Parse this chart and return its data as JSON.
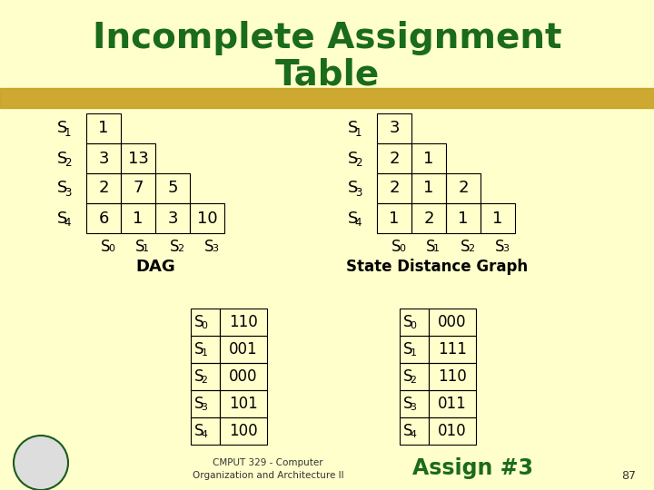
{
  "title_line1": "Incomplete Assignment",
  "title_line2": "Table",
  "title_color": "#1a6b1a",
  "bg_color": "#ffffcc",
  "text_color": "#000000",
  "highlight_color": "#c8a020",
  "dag_label": "DAG",
  "sdg_label": "State Distance Graph",
  "dag_rows": [
    {
      "state": "S",
      "sub": "1",
      "vals": [
        "1"
      ]
    },
    {
      "state": "S",
      "sub": "2",
      "vals": [
        "3",
        "13"
      ]
    },
    {
      "state": "S",
      "sub": "3",
      "vals": [
        "2",
        "7",
        "5"
      ]
    },
    {
      "state": "S",
      "sub": "4",
      "vals": [
        "6",
        "1",
        "3",
        "10"
      ]
    }
  ],
  "dag_col_labels": [
    [
      "S",
      "0"
    ],
    [
      "S",
      "1"
    ],
    [
      "S",
      "2"
    ],
    [
      "S",
      "3"
    ]
  ],
  "sdg_rows": [
    {
      "state": "S",
      "sub": "1",
      "vals": [
        "3"
      ]
    },
    {
      "state": "S",
      "sub": "2",
      "vals": [
        "2",
        "1"
      ]
    },
    {
      "state": "S",
      "sub": "3",
      "vals": [
        "2",
        "1",
        "2"
      ]
    },
    {
      "state": "S",
      "sub": "4",
      "vals": [
        "1",
        "2",
        "1",
        "1"
      ]
    }
  ],
  "sdg_col_labels": [
    [
      "S",
      "0"
    ],
    [
      "S",
      "1"
    ],
    [
      "S",
      "2"
    ],
    [
      "S",
      "3"
    ]
  ],
  "assign_left": [
    {
      "state": "S",
      "sub": "0",
      "val": "110"
    },
    {
      "state": "S",
      "sub": "1",
      "val": "001"
    },
    {
      "state": "S",
      "sub": "2",
      "val": "000"
    },
    {
      "state": "S",
      "sub": "3",
      "val": "101"
    },
    {
      "state": "S",
      "sub": "4",
      "val": "100"
    }
  ],
  "assign_right": [
    {
      "state": "S",
      "sub": "0",
      "val": "000"
    },
    {
      "state": "S",
      "sub": "1",
      "val": "111"
    },
    {
      "state": "S",
      "sub": "2",
      "val": "110"
    },
    {
      "state": "S",
      "sub": "3",
      "val": "011"
    },
    {
      "state": "S",
      "sub": "4",
      "val": "010"
    }
  ],
  "footer_left1": "CMPUT 329 - Computer",
  "footer_left2": "Organization and Architecture II",
  "footer_right": "Assign #3",
  "page_num": "87"
}
